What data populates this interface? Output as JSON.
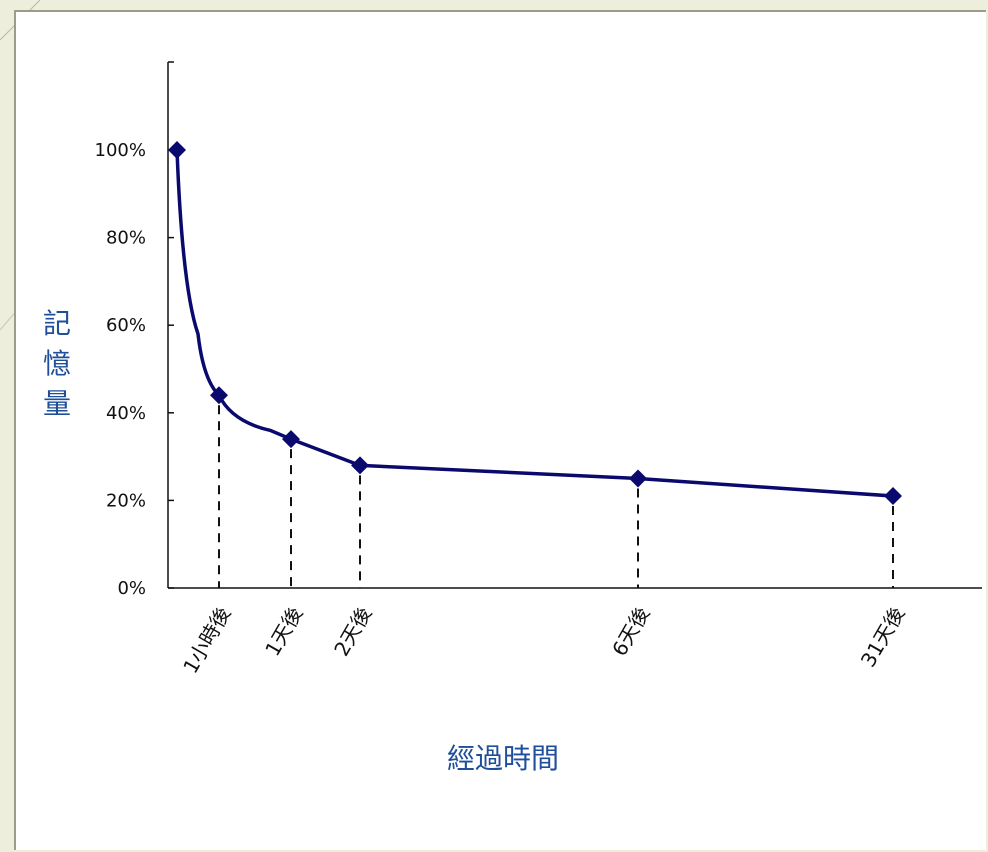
{
  "colors": {
    "line": "#0a0a6e",
    "axis_title": "#1f4e9a",
    "background": "#eeeedd",
    "panel": "#ffffff"
  },
  "chart_data": {
    "type": "line",
    "title": "",
    "xlabel": "經過時間",
    "ylabel": "記憶量",
    "ylim": [
      0,
      100
    ],
    "y_ticks": [
      "0%",
      "20%",
      "40%",
      "60%",
      "80%",
      "100%"
    ],
    "grid": false,
    "legend": "none",
    "marked_points": [
      {
        "label": "",
        "hours": 0,
        "value": 100
      },
      {
        "label": "1小時後",
        "hours": 1,
        "value": 44
      },
      {
        "label": "1天後",
        "hours": 24,
        "value": 34
      },
      {
        "label": "2天後",
        "hours": 48,
        "value": 28
      },
      {
        "label": "6天後",
        "hours": 144,
        "value": 25
      },
      {
        "label": "31天後",
        "hours": 744,
        "value": 21
      }
    ],
    "curve_points": [
      {
        "hours": 0,
        "value": 100
      },
      {
        "hours": 0.33,
        "value": 58
      },
      {
        "hours": 1,
        "value": 44
      },
      {
        "hours": 9,
        "value": 36
      },
      {
        "hours": 24,
        "value": 34
      },
      {
        "hours": 48,
        "value": 28
      },
      {
        "hours": 144,
        "value": 25
      },
      {
        "hours": 744,
        "value": 21
      }
    ]
  }
}
